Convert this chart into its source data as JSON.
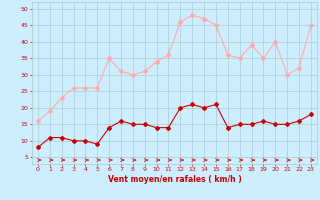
{
  "x": [
    0,
    1,
    2,
    3,
    4,
    5,
    6,
    7,
    8,
    9,
    10,
    11,
    12,
    13,
    14,
    15,
    16,
    17,
    18,
    19,
    20,
    21,
    22,
    23
  ],
  "wind_mean": [
    8,
    11,
    11,
    10,
    10,
    9,
    14,
    16,
    15,
    15,
    14,
    14,
    20,
    21,
    20,
    21,
    14,
    15,
    15,
    16,
    15,
    15,
    16,
    18
  ],
  "wind_gust": [
    16,
    19,
    23,
    26,
    26,
    26,
    35,
    31,
    30,
    31,
    34,
    36,
    46,
    48,
    47,
    45,
    36,
    35,
    39,
    35,
    40,
    30,
    32,
    45
  ],
  "bg_color": "#cceeff",
  "grid_color": "#aacccc",
  "mean_color": "#cc0000",
  "gust_color": "#ffaaaa",
  "arrow_color": "#cc0000",
  "xlabel": "Vent moyen/en rafales ( km/h )",
  "xlabel_color": "#cc0000",
  "tick_color": "#cc0000",
  "ylim": [
    3,
    52
  ],
  "yticks": [
    5,
    10,
    15,
    20,
    25,
    30,
    35,
    40,
    45,
    50
  ],
  "xlim": [
    -0.5,
    23.5
  ]
}
